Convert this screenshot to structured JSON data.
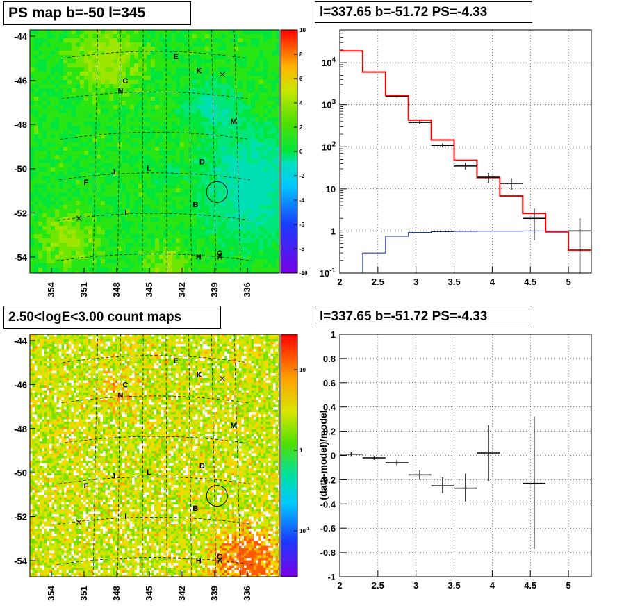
{
  "chart_data": [
    {
      "id": "ps_map",
      "type": "heatmap",
      "title": "PS map b=-50 l=345",
      "x_ticks": [
        "354",
        "351",
        "348",
        "345",
        "342",
        "339",
        "336"
      ],
      "y_ticks": [
        "-44",
        "-46",
        "-48",
        "-50",
        "-52",
        "-54"
      ],
      "colorbar_ticks": [
        "10",
        "8",
        "6",
        "4",
        "2",
        "0",
        "-2",
        "-4",
        "-6",
        "-8",
        "-10"
      ],
      "colorbar_range": [
        -10,
        10
      ],
      "sources": [
        {
          "label": "E",
          "lon": 342.2,
          "lat": -44.9
        },
        {
          "label": "K",
          "lon": 339.2,
          "lat": -45.6
        },
        {
          "label": "C",
          "lon": 348.8,
          "lat": -46.1
        },
        {
          "label": "N",
          "lon": 349.4,
          "lat": -46.6
        },
        {
          "label": "M",
          "lon": 334.9,
          "lat": -48.1
        },
        {
          "label": "D",
          "lon": 339.0,
          "lat": -50.1
        },
        {
          "label": "L",
          "lon": 345.7,
          "lat": -50.4
        },
        {
          "label": "J",
          "lon": 350.2,
          "lat": -50.6
        },
        {
          "label": "F",
          "lon": 353.6,
          "lat": -51.1
        },
        {
          "label": "B",
          "lon": 339.9,
          "lat": -52.2
        },
        {
          "label": "I",
          "lon": 348.6,
          "lat": -52.6
        },
        {
          "label": "G",
          "lon": 337.0,
          "lat": -54.6
        },
        {
          "label": "H",
          "lon": 339.6,
          "lat": -54.8
        },
        {
          "label": "A",
          "lon": 337.0,
          "lat": -54.8
        }
      ],
      "crosses": [
        {
          "lon": 336.2,
          "lat": -45.8
        },
        {
          "lon": 354.4,
          "lat": -52.9
        }
      ],
      "circle": {
        "lon": 337.2,
        "lat": -51.6
      }
    },
    {
      "id": "spectrum",
      "type": "line",
      "title": "l=337.65 b=-51.72 PS=-4.33",
      "x_ticks": [
        "2",
        "2.5",
        "3",
        "3.5",
        "4",
        "4.5",
        "5"
      ],
      "y_ticks": [
        "10^-1",
        "1",
        "10",
        "10^2",
        "10^3",
        "10^4"
      ],
      "xlim": [
        2,
        5.3
      ],
      "ylim": [
        0.1,
        60000
      ],
      "y_scale": "log",
      "grid": true,
      "model_total": {
        "edges": [
          2.0,
          2.3,
          2.6,
          2.9,
          3.2,
          3.5,
          3.8,
          4.1,
          4.4,
          4.7,
          5.0,
          5.3
        ],
        "values": [
          19000,
          6000,
          1650,
          430,
          145,
          48,
          18.5,
          6.8,
          2.6,
          0.95,
          0.35
        ]
      },
      "model_source": {
        "edges": [
          2.0,
          2.3,
          2.6,
          2.9,
          3.2,
          3.5,
          3.8,
          4.1,
          4.4,
          4.7,
          5.0,
          5.3
        ],
        "values": [
          0.05,
          0.3,
          0.75,
          0.92,
          0.96,
          0.98,
          0.99,
          0.99,
          1.0,
          1.0,
          1.0
        ]
      },
      "data_points": [
        {
          "x": 2.75,
          "y": 1550,
          "xerr": 0.15,
          "ylo": 1480,
          "yhi": 1620
        },
        {
          "x": 3.05,
          "y": 380,
          "xerr": 0.15,
          "ylo": 350,
          "yhi": 410
        },
        {
          "x": 3.35,
          "y": 108,
          "xerr": 0.15,
          "ylo": 96,
          "yhi": 120
        },
        {
          "x": 3.65,
          "y": 35,
          "xerr": 0.15,
          "ylo": 29,
          "yhi": 42
        },
        {
          "x": 3.95,
          "y": 19,
          "xerr": 0.15,
          "ylo": 14,
          "yhi": 24
        },
        {
          "x": 4.25,
          "y": 13.5,
          "xerr": 0.15,
          "ylo": 9.5,
          "yhi": 18
        },
        {
          "x": 4.55,
          "y": 2.0,
          "xerr": 0.15,
          "ylo": 0.6,
          "yhi": 3.4
        },
        {
          "x": 5.15,
          "y": 1.0,
          "xerr": 0.15,
          "ylo": 0.1,
          "yhi": 2.0
        }
      ]
    },
    {
      "id": "count_map",
      "type": "heatmap",
      "title": "2.50<logE<3.00 count maps",
      "x_ticks": [
        "354",
        "351",
        "348",
        "345",
        "342",
        "339",
        "336"
      ],
      "y_ticks": [
        "-44",
        "-46",
        "-48",
        "-50",
        "-52",
        "-54"
      ],
      "colorbar_ticks": [
        "10",
        "1",
        "10^-1"
      ],
      "colorbar_scale": "log"
    },
    {
      "id": "residuals",
      "type": "scatter",
      "title": "l=337.65 b=-51.72 PS=-4.33",
      "ylabel": "(data-model)/model",
      "x_ticks": [
        "2",
        "2.5",
        "3",
        "3.5",
        "4",
        "4.5",
        "5"
      ],
      "y_ticks": [
        "1",
        "0.8",
        "0.6",
        "0.4",
        "0.2",
        "0",
        "-0.2",
        "-0.4",
        "-0.6",
        "-0.8",
        "-1"
      ],
      "xlim": [
        2,
        5.3
      ],
      "ylim": [
        -1,
        1
      ],
      "grid": true,
      "data_points": [
        {
          "x": 2.15,
          "y": 0.01,
          "xerr": 0.15,
          "ylo": -0.005,
          "yhi": 0.025
        },
        {
          "x": 2.45,
          "y": -0.02,
          "xerr": 0.15,
          "ylo": -0.035,
          "yhi": -0.005
        },
        {
          "x": 2.75,
          "y": -0.06,
          "xerr": 0.15,
          "ylo": -0.085,
          "yhi": -0.035
        },
        {
          "x": 3.05,
          "y": -0.16,
          "xerr": 0.15,
          "ylo": -0.2,
          "yhi": -0.12
        },
        {
          "x": 3.35,
          "y": -0.25,
          "xerr": 0.15,
          "ylo": -0.31,
          "yhi": -0.18
        },
        {
          "x": 3.65,
          "y": -0.27,
          "xerr": 0.15,
          "ylo": -0.38,
          "yhi": -0.15
        },
        {
          "x": 3.95,
          "y": 0.02,
          "xerr": 0.15,
          "ylo": -0.21,
          "yhi": 0.25
        },
        {
          "x": 4.55,
          "y": -0.23,
          "xerr": 0.15,
          "ylo": -0.77,
          "yhi": 0.32
        }
      ]
    }
  ]
}
